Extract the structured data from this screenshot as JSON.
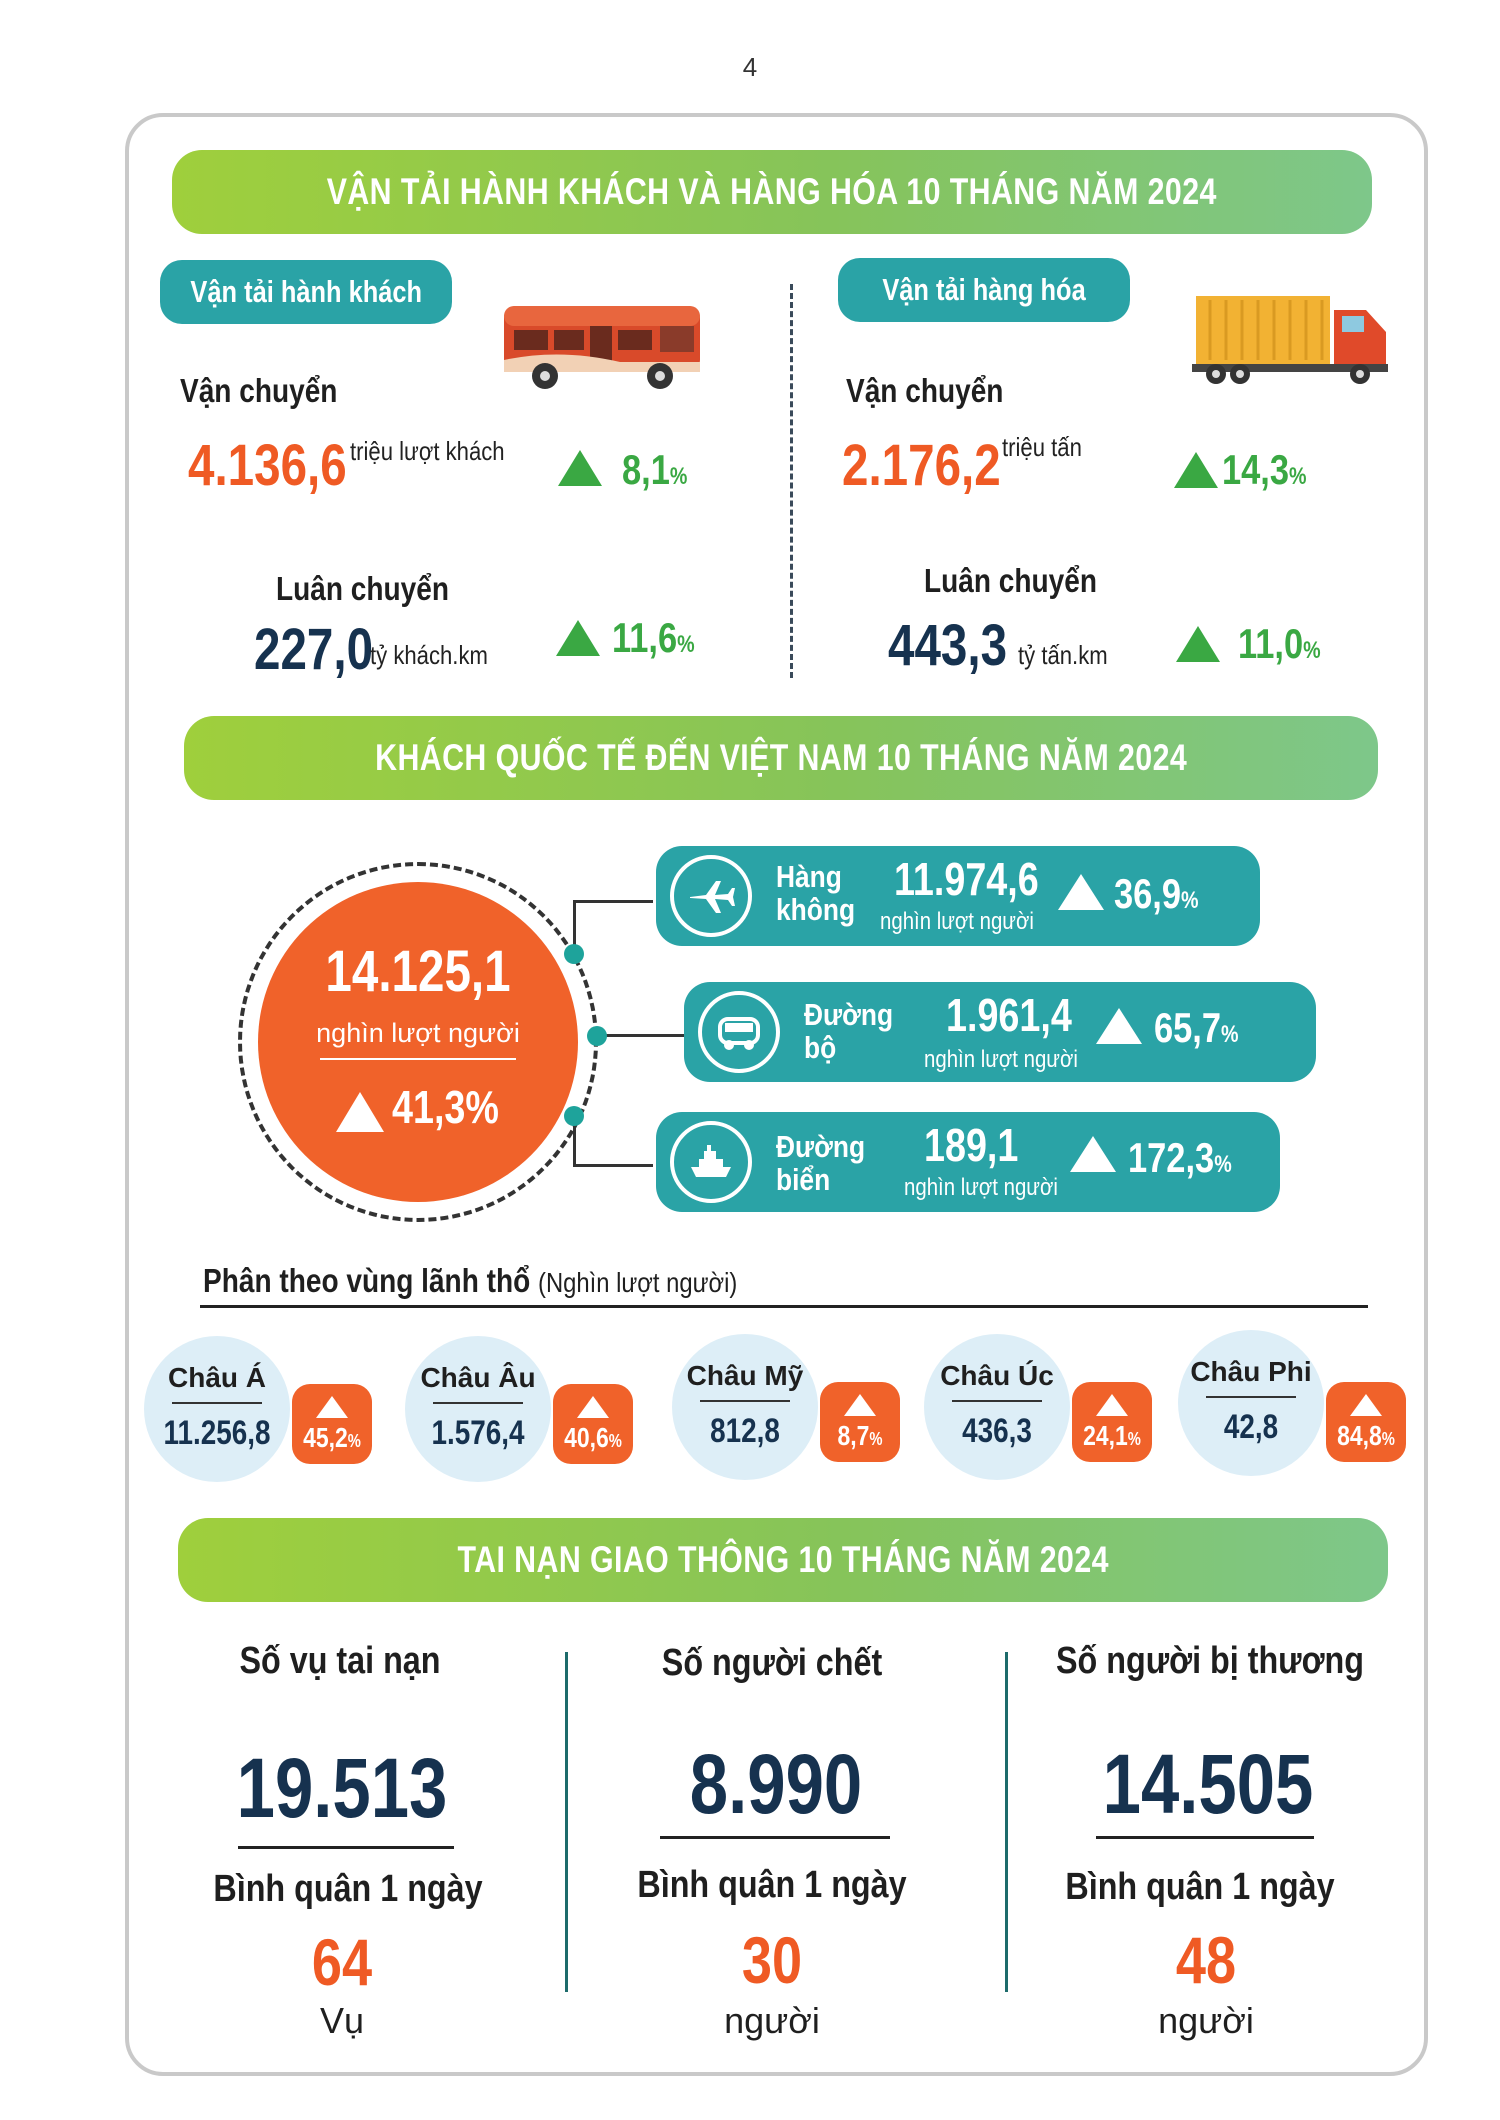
{
  "page_number": "4",
  "transport": {
    "banner": "VẬN TẢI HÀNH KHÁCH VÀ HÀNG HÓA 10 THÁNG NĂM 2024",
    "passenger": {
      "pill": "Vận tải hành khách",
      "carried_label": "Vận chuyển",
      "carried_value": "4.136,6",
      "carried_unit": "triệu lượt khách",
      "carried_pct": "8,1",
      "traffic_label": "Luân chuyển",
      "traffic_value": "227,0",
      "traffic_unit": "tỷ khách.km",
      "traffic_pct": "11,6"
    },
    "freight": {
      "pill": "Vận tải hàng hóa",
      "carried_label": "Vận chuyển",
      "carried_value": "2.176,2",
      "carried_unit": "triệu tấn",
      "carried_pct": "14,3",
      "traffic_label": "Luân chuyển",
      "traffic_value": "443,3",
      "traffic_unit": "tỷ tấn.km",
      "traffic_pct": "11,0"
    },
    "percent_sign": "%"
  },
  "international": {
    "banner": "KHÁCH QUỐC TẾ ĐẾN VIỆT NAM 10 THÁNG NĂM 2024",
    "total_value": "14.125,1",
    "total_unit": "nghìn lượt người",
    "total_pct": "41,3%",
    "modes": [
      {
        "name_line1": "Hàng",
        "name_line2": "không",
        "value": "11.974,6",
        "unit": "nghìn lượt người",
        "pct": "36,9",
        "icon": "airplane-icon"
      },
      {
        "name_line1": "Đường",
        "name_line2": "bộ",
        "value": "1.961,4",
        "unit": "nghìn lượt người",
        "pct": "65,7",
        "icon": "bus-icon"
      },
      {
        "name_line1": "Đường",
        "name_line2": "biển",
        "value": "189,1",
        "unit": "nghìn lượt người",
        "pct": "172,3",
        "icon": "ship-icon"
      }
    ],
    "region_title": "Phân theo vùng lãnh thổ",
    "region_subtitle": "(Nghìn lượt người)",
    "regions": [
      {
        "name": "Châu Á",
        "value": "11.256,8",
        "pct": "45,2"
      },
      {
        "name": "Châu Âu",
        "value": "1.576,4",
        "pct": "40,6"
      },
      {
        "name": "Châu Mỹ",
        "value": "812,8",
        "pct": "8,7"
      },
      {
        "name": "Châu Úc",
        "value": "436,3",
        "pct": "24,1"
      },
      {
        "name": "Châu Phi",
        "value": "42,8",
        "pct": "84,8"
      }
    ]
  },
  "accidents": {
    "banner": "TAI NẠN GIAO THÔNG 10 THÁNG NĂM 2024",
    "avg_label": "Bình quân 1 ngày",
    "items": [
      {
        "label": "Số vụ tai nạn",
        "value": "19.513",
        "avg": "64",
        "avg_unit": "Vụ"
      },
      {
        "label": "Số người chết",
        "value": "8.990",
        "avg": "30",
        "avg_unit": "người"
      },
      {
        "label": "Số người bị thương",
        "value": "14.505",
        "avg": "48",
        "avg_unit": "người"
      }
    ]
  },
  "colors": {
    "orange": "#f0622a",
    "teal": "#2aa3a6",
    "green": "#3aa843",
    "navy": "#16324f"
  }
}
